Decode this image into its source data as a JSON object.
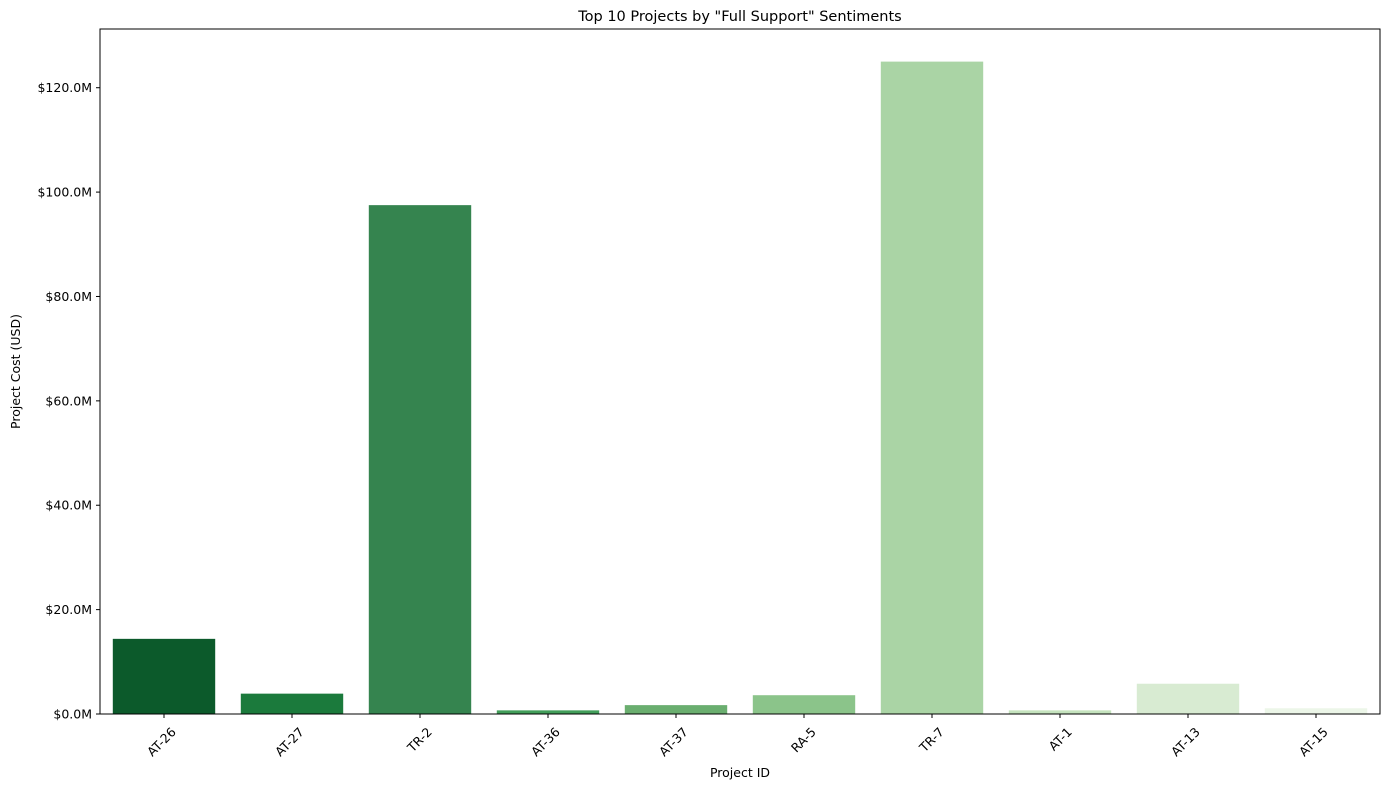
{
  "chart_data": {
    "type": "bar",
    "title": "Top 10 Projects by \"Full Support\" Sentiments",
    "xlabel": "Project ID",
    "ylabel": "Project Cost (USD)",
    "categories": [
      "AT-26",
      "AT-27",
      "TR-2",
      "AT-36",
      "AT-37",
      "RA-5",
      "TR-7",
      "AT-1",
      "AT-13",
      "AT-15"
    ],
    "values": [
      14400000,
      3900000,
      97500000,
      700000,
      1700000,
      3600000,
      125000000,
      700000,
      5800000,
      1100000
    ],
    "colors": [
      "#0c5a2b",
      "#1b7a3c",
      "#35844f",
      "#429e5a",
      "#6aae6f",
      "#8bc48a",
      "#aad4a5",
      "#c5e3be",
      "#d8ebd2",
      "#ecf6e8"
    ],
    "ylim": [
      0,
      131250000
    ],
    "yticks": [
      0,
      20000000,
      40000000,
      60000000,
      80000000,
      100000000,
      120000000
    ],
    "ytick_labels": [
      "$0.0M",
      "$20.0M",
      "$40.0M",
      "$60.0M",
      "$80.0M",
      "$100.0M",
      "$120.0M"
    ],
    "grid": false,
    "xtick_rotation": 45
  }
}
